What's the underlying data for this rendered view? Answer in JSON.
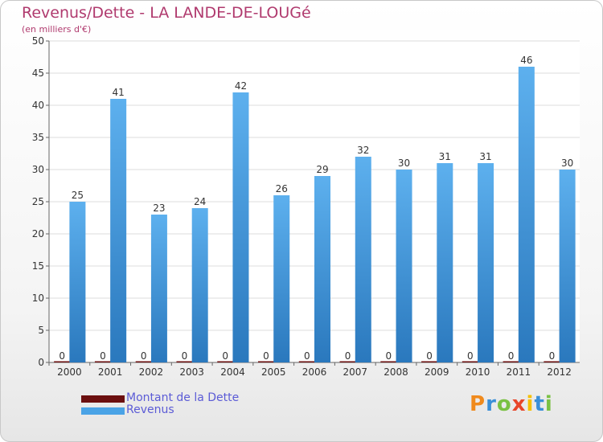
{
  "header": {
    "title": "Revenus/Dette - LA LANDE-DE-LOUGé",
    "subtitle": "(en milliers d'€)"
  },
  "chart_data": {
    "type": "bar",
    "categories": [
      "2000",
      "2001",
      "2002",
      "2003",
      "2004",
      "2005",
      "2006",
      "2007",
      "2008",
      "2009",
      "2010",
      "2011",
      "2012"
    ],
    "series": [
      {
        "name": "Montant de la Dette",
        "color": "#6b0f0f",
        "values": [
          0,
          0,
          0,
          0,
          0,
          0,
          0,
          0,
          0,
          0,
          0,
          0,
          0
        ]
      },
      {
        "name": "Revenus",
        "color": "#4aa3e6",
        "values": [
          25,
          41,
          23,
          24,
          42,
          26,
          29,
          32,
          30,
          31,
          31,
          46,
          30
        ]
      }
    ],
    "ylim": [
      0,
      50
    ],
    "yticks": [
      0,
      5,
      10,
      15,
      20,
      25,
      30,
      35,
      40,
      45,
      50
    ],
    "grid": true,
    "legend_position": "bottom-left"
  },
  "legend": {
    "items": [
      {
        "label": "Montant de la Dette",
        "color": "#6b0f0f"
      },
      {
        "label": "Revenus",
        "color": "#4aa3e6"
      }
    ]
  },
  "brand": {
    "letters": [
      "P",
      "r",
      "o",
      "x",
      "i",
      "t",
      "i"
    ],
    "colors": [
      "#f08a1c",
      "#3a8fd8",
      "#7ac143",
      "#e8462a",
      "#f6c000",
      "#3a8fd8",
      "#7ac143"
    ]
  }
}
